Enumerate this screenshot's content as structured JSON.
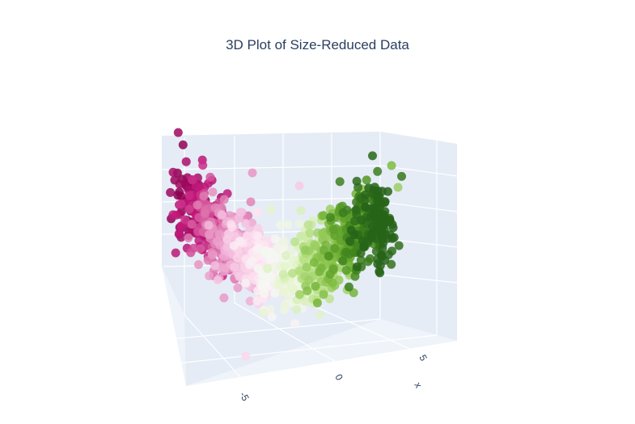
{
  "chart_data": {
    "type": "scatter3d",
    "title": "3D Plot of Size-Reduced Data",
    "axes": {
      "x": {
        "label": "x",
        "ticks": [
          "-5",
          "0",
          "5"
        ]
      },
      "y": {
        "label": "",
        "ticks": []
      },
      "z": {
        "label": "",
        "ticks": []
      }
    },
    "grid": true,
    "colorscale": "PiYG",
    "colorscale_colors": [
      "#8e0152",
      "#c51b7d",
      "#de77ae",
      "#f1b6da",
      "#fde0ef",
      "#f7f7f7",
      "#e6f5d0",
      "#b8e186",
      "#7fbc41",
      "#4d9221",
      "#276419"
    ],
    "point_count_estimate": 1200,
    "x_range": [
      -8,
      8
    ],
    "series": [
      {
        "values_note": "",
        "color_range": [
          0,
          1
        ]
      }
    ]
  }
}
